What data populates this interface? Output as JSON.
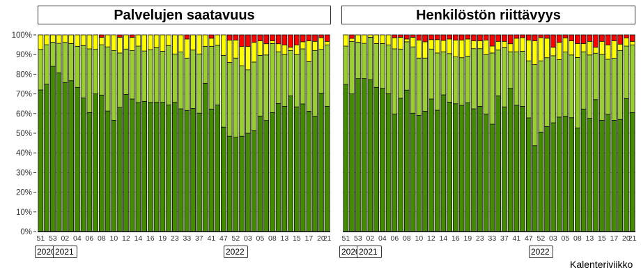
{
  "colors": {
    "dark_green": "#458b00",
    "light_green": "#9acd32",
    "yellow": "#ffff00",
    "red": "#ff0000"
  },
  "xlabel": "Kalenteriviikko",
  "y_ticks": [
    "0%",
    "10%",
    "20%",
    "30%",
    "40%",
    "50%",
    "60%",
    "70%",
    "80%",
    "90%",
    "100%"
  ],
  "chart_data": [
    {
      "type": "bar",
      "stacked": true,
      "title": "Palvelujen saatavuus",
      "ylim": [
        0,
        100
      ],
      "grid": true,
      "year_labels": [
        "2020",
        "2021",
        "2022"
      ],
      "categories": [
        "51",
        "",
        "53",
        "",
        "02",
        "",
        "04",
        "",
        "06",
        "",
        "08",
        "",
        "10",
        "",
        "12",
        "",
        "14",
        "",
        "16",
        "",
        "19",
        "",
        "23",
        "",
        "33",
        "",
        "37",
        "",
        "41",
        "",
        "47",
        "",
        "52",
        "",
        "03",
        "",
        "05",
        "",
        "08",
        "",
        "13",
        "",
        "15",
        "",
        "17",
        "",
        "20",
        "21"
      ],
      "series": [
        {
          "color": "#458b00",
          "values": [
            72,
            75,
            84,
            80.7,
            75.8,
            76.7,
            73.3,
            68,
            60.5,
            70,
            69.4,
            61.3,
            56.6,
            63.1,
            69.7,
            67.4,
            65.6,
            66.2,
            65.7,
            65.7,
            65.7,
            64.4,
            65.7,
            62.4,
            61.6,
            62.6,
            60.2,
            75.4,
            62.3,
            64.4,
            53.1,
            48.5,
            48,
            48.5,
            50,
            51.3,
            58.7,
            56.5,
            60.5,
            65.1,
            63.7,
            69,
            63.4,
            64.9,
            61.2,
            58.7,
            70.4,
            63.7
          ]
        },
        {
          "color": "#9acd32",
          "values": [
            20.6,
            20,
            12.3,
            15,
            20.4,
            18.9,
            20.9,
            26.6,
            32.4,
            22.7,
            25.6,
            32.6,
            35.4,
            27.7,
            23.1,
            24.6,
            28.7,
            25.6,
            26.7,
            27.8,
            26,
            30.2,
            24.6,
            28.9,
            26.6,
            29.7,
            30.1,
            18.8,
            31.9,
            30.3,
            36.5,
            37.5,
            40.2,
            35.8,
            32.3,
            34.9,
            30.9,
            33.3,
            35.1,
            26.3,
            26.3,
            23,
            26.6,
            28,
            25.2,
            33.3,
            22.3,
            31.2
          ]
        },
        {
          "color": "#ffff00",
          "values": [
            7.4,
            5,
            3.7,
            4.3,
            3.8,
            4.4,
            5.8,
            5.4,
            7.1,
            7.3,
            3.8,
            6.1,
            8,
            8,
            7.2,
            6.8,
            5.7,
            8.2,
            7.6,
            6.5,
            8.3,
            5.4,
            9.7,
            8.7,
            9.7,
            7.7,
            9.7,
            5.8,
            4.1,
            5.3,
            10.4,
            11.3,
            9.2,
            9.8,
            11.8,
            10,
            7.4,
            5.7,
            1.4,
            4.1,
            4.9,
            1.7,
            4.9,
            3.6,
            10.6,
            4.7,
            5.9,
            1.8
          ]
        },
        {
          "color": "#ff0000",
          "values": [
            0,
            0,
            0,
            0,
            0,
            0,
            0,
            0,
            0,
            0,
            1.2,
            0,
            0,
            1.2,
            0,
            1.2,
            0,
            0,
            0,
            0,
            0,
            0,
            0,
            0,
            2.1,
            0,
            0,
            0,
            1.7,
            0,
            0,
            2.7,
            2.6,
            5.9,
            5.9,
            3.8,
            3,
            4.5,
            3,
            4.5,
            5.1,
            6.3,
            5.1,
            3.5,
            3,
            3.3,
            1.4,
            3.3
          ]
        }
      ]
    },
    {
      "type": "bar",
      "stacked": true,
      "title": "Henkilöstön riittävyys",
      "ylim": [
        0,
        100
      ],
      "grid": true,
      "year_labels": [
        "2020",
        "2021",
        "2022"
      ],
      "categories": [
        "51",
        "",
        "53",
        "",
        "02",
        "",
        "04",
        "",
        "06",
        "",
        "08",
        "",
        "10",
        "",
        "12",
        "",
        "14",
        "",
        "16",
        "",
        "19",
        "",
        "23",
        "",
        "33",
        "",
        "37",
        "",
        "41",
        "",
        "47",
        "",
        "52",
        "",
        "03",
        "",
        "05",
        "",
        "08",
        "",
        "13",
        "",
        "15",
        "",
        "17",
        "",
        "20",
        "21"
      ],
      "series": [
        {
          "color": "#458b00",
          "values": [
            74.8,
            70,
            77.8,
            77.8,
            77.2,
            73.3,
            72.8,
            70.1,
            59.8,
            67.8,
            71.9,
            60.2,
            59.1,
            61.2,
            67.4,
            61.7,
            69.5,
            65.8,
            65,
            64.2,
            65.5,
            62.4,
            63.7,
            59.8,
            54.6,
            69,
            63.4,
            72.8,
            64.2,
            63.7,
            57.8,
            43.7,
            50.6,
            53.4,
            55.3,
            58.2,
            58.7,
            57.9,
            52.7,
            62.3,
            57.6,
            67.1,
            56.6,
            59.6,
            56.6,
            57,
            67.6,
            60.5
          ]
        },
        {
          "color": "#9acd32",
          "values": [
            19.5,
            26.7,
            18.5,
            17.9,
            21.6,
            22.3,
            22.8,
            24.8,
            33.1,
            25,
            24.6,
            33.7,
            29.1,
            27,
            25.4,
            29.1,
            21.9,
            24.7,
            23.8,
            24.2,
            23.7,
            30.6,
            29.3,
            30.2,
            36.2,
            23.3,
            30.1,
            18.6,
            27.2,
            28,
            29,
            41.2,
            36.2,
            35,
            34.1,
            29.2,
            32.6,
            31.9,
            35.8,
            29.1,
            32.2,
            23.6,
            33.4,
            28,
            31.5,
            35,
            26.7,
            34.4
          ]
        },
        {
          "color": "#ffff00",
          "values": [
            5.7,
            1.5,
            3.7,
            4.3,
            1.2,
            4.4,
            4.4,
            5.1,
            5.7,
            6,
            1.4,
            4.9,
            9.2,
            8.3,
            4.8,
            6.8,
            5.8,
            7.4,
            8.6,
            9,
            8.7,
            4,
            4,
            7.4,
            3.5,
            4.4,
            3.2,
            4.1,
            6.9,
            6.9,
            10.6,
            12.1,
            11.8,
            9.9,
            4.3,
            8.8,
            7.2,
            7.2,
            7.1,
            4.2,
            6.9,
            3,
            6.7,
            7.3,
            8.9,
            3.3,
            4.2,
            1.8
          ]
        },
        {
          "color": "#ff0000",
          "values": [
            0,
            1.8,
            0,
            0,
            0,
            0,
            0,
            0,
            1.4,
            1.2,
            2.1,
            1.2,
            2.6,
            3.5,
            2.4,
            2.4,
            2.8,
            2.1,
            2.6,
            2.6,
            2.1,
            3,
            3,
            2.6,
            5.7,
            3.3,
            3.3,
            4.5,
            1.7,
            1.4,
            2.6,
            3,
            1.4,
            1.7,
            6.3,
            3.8,
            1.5,
            3,
            4.4,
            4.4,
            3.3,
            6.3,
            3.3,
            5.1,
            3,
            4.7,
            1.5,
            3.3
          ]
        }
      ]
    }
  ]
}
